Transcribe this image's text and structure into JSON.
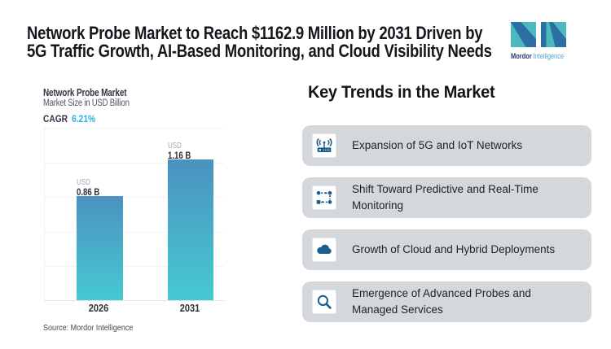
{
  "header": {
    "title_line1": "Network Probe Market to Reach $1162.9 Million by 2031 Driven by",
    "title_line2": "5G Traffic Growth, AI-Based Monitoring, and Cloud Visibility Needs"
  },
  "logo": {
    "brand_bold": "Mordor",
    "brand_light": "Intelligence",
    "teal": "#4CB9C1",
    "navy": "#2B6FA3"
  },
  "chart": {
    "title": "Network Probe Market",
    "subtitle": "Market Size in USD Billion",
    "cagr_label": "CAGR",
    "cagr_value": "6.21%",
    "unit_label": "USD",
    "source": "Source: Mordor Intelligence"
  },
  "chart_data": {
    "type": "bar",
    "title": "Network Probe Market",
    "subtitle": "Market Size in USD Billion",
    "categories": [
      "2026",
      "2031"
    ],
    "values": [
      0.86,
      1.16
    ],
    "value_labels": [
      "0.86 B",
      "1.16 B"
    ],
    "unit": "USD Billion",
    "cagr_percent": 6.21,
    "ylim": [
      0,
      1.43
    ],
    "gridlines": "dotted-horizontal",
    "bar_color_top": "#4B92C0",
    "bar_color_bottom": "#46C9D1",
    "legend": "none"
  },
  "trends": {
    "heading": "Key Trends in the Market",
    "items": [
      {
        "icon": "router-icon",
        "label": "Expansion of 5G and IoT Networks"
      },
      {
        "icon": "workflow-icon",
        "label": "Shift Toward Predictive and Real-Time\nMonitoring"
      },
      {
        "icon": "cloud-icon",
        "label": "Growth of Cloud and Hybrid Deployments"
      },
      {
        "icon": "magnifier-icon",
        "label": "Emergence of Advanced Probes and\nManaged Services"
      }
    ],
    "card_bg": "#D4D7DB",
    "icon_color": "#1B5F8A"
  }
}
